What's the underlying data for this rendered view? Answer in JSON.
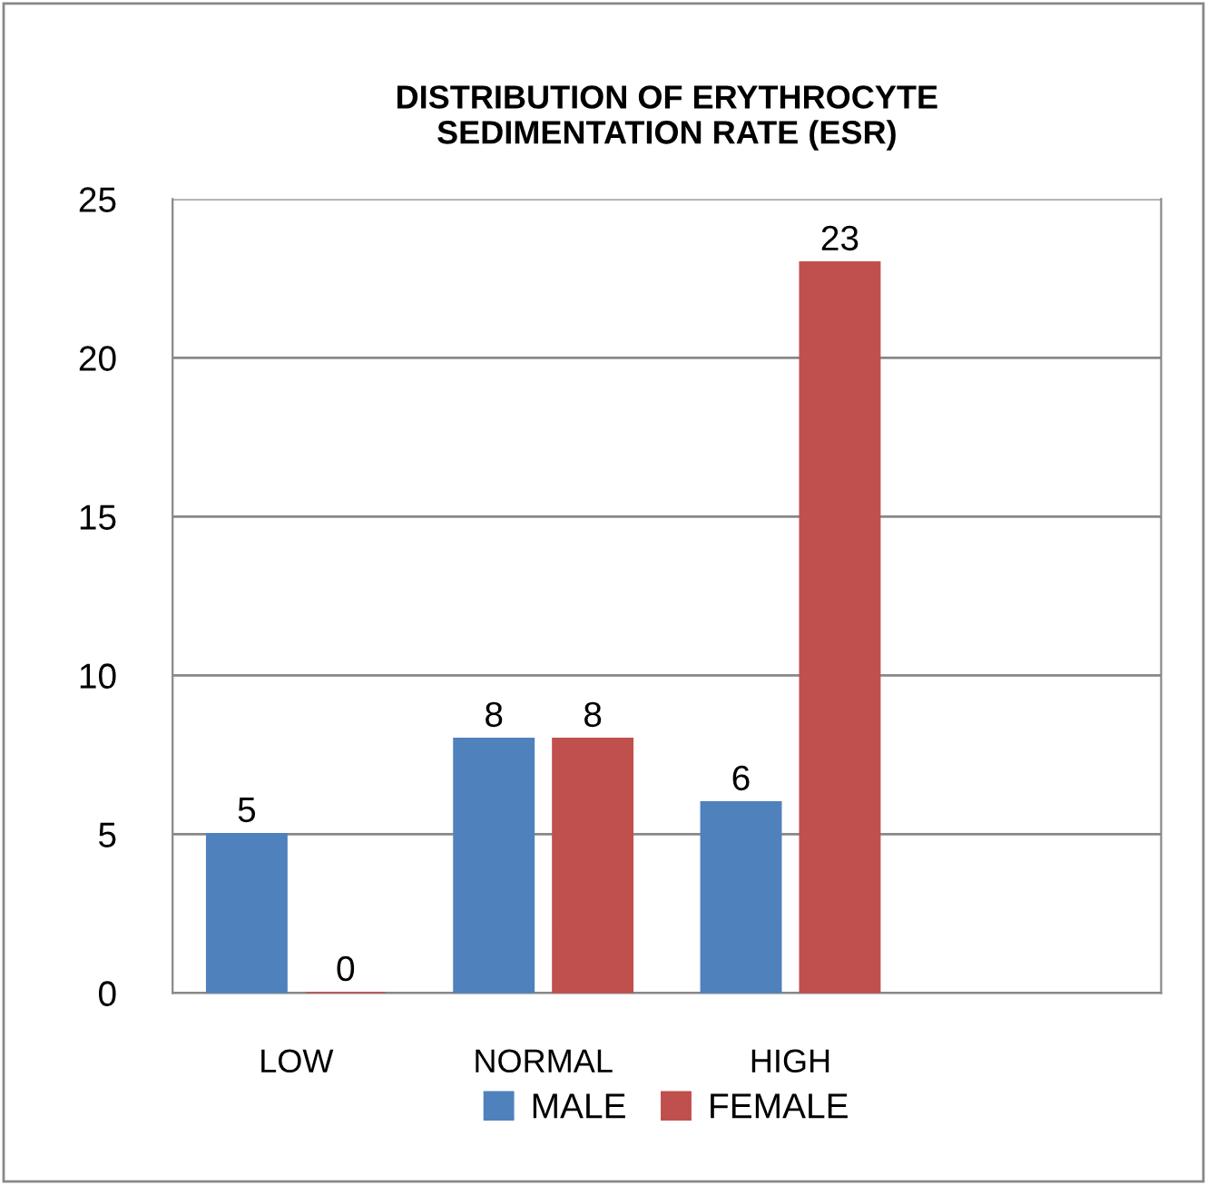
{
  "chart_data": {
    "type": "bar",
    "title": "DISTRIBUTION OF ERYTHROCYTE\nSEDIMENTATION RATE (ESR)",
    "categories": [
      "LOW",
      "NORMAL",
      "HIGH",
      null
    ],
    "series": [
      {
        "name": "MALE",
        "color": "#4f81bd",
        "values": [
          5,
          8,
          6,
          null
        ]
      },
      {
        "name": "FEMALE",
        "color": "#c0504d",
        "values": [
          0,
          8,
          23,
          null
        ]
      }
    ],
    "ylim": [
      0,
      25
    ],
    "yticks": [
      0,
      5,
      10,
      15,
      20,
      25
    ],
    "grid": "y",
    "legend": "bottom",
    "data_labels": true
  }
}
